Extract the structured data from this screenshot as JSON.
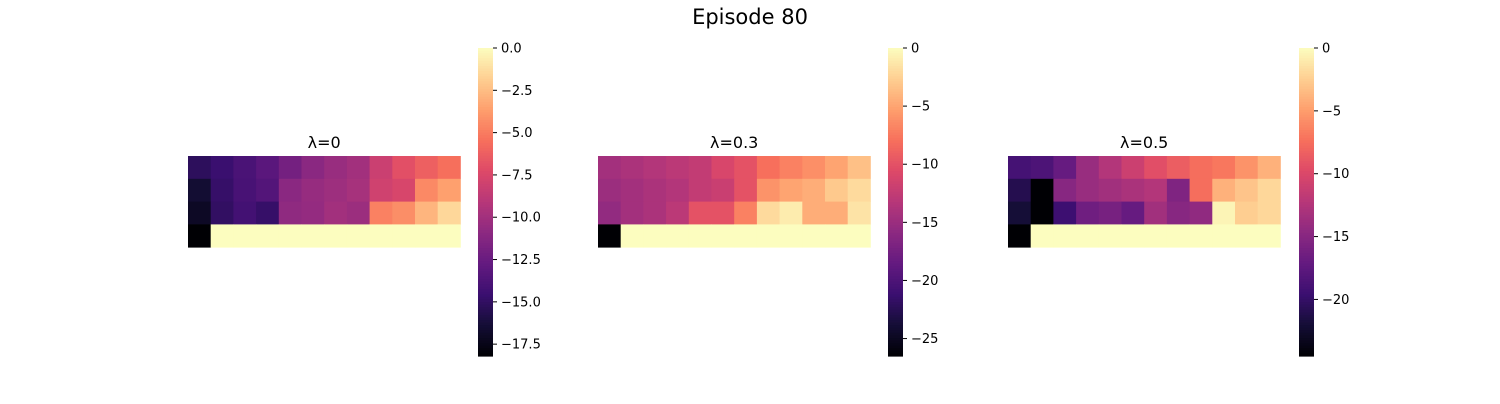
{
  "figure": {
    "title": "Episode 80"
  },
  "colormap": "magma",
  "chart_data": [
    {
      "type": "heatmap",
      "title": "λ=0",
      "rows": 4,
      "cols": 12,
      "values": [
        [
          -15.2,
          -14.6,
          -13.9,
          -13.2,
          -12.0,
          -11.0,
          -10.4,
          -10.0,
          -8.2,
          -7.0,
          -6.2,
          -5.5
        ],
        [
          -16.5,
          -14.8,
          -14.0,
          -13.5,
          -11.0,
          -10.5,
          -10.2,
          -9.8,
          -8.0,
          -7.6,
          -4.5,
          -3.6
        ],
        [
          -17.0,
          -15.0,
          -14.2,
          -14.8,
          -10.8,
          -10.6,
          -10.0,
          -10.3,
          -4.8,
          -4.3,
          -2.8,
          -1.5
        ],
        [
          -18.2,
          0,
          0,
          0,
          0,
          0,
          0,
          0,
          0,
          0,
          0,
          0
        ]
      ],
      "vmin": -18.2,
      "vmax": 0,
      "colorbar_ticks": [
        0,
        -2.5,
        -5,
        -7.5,
        -10,
        -12.5,
        -15,
        -17.5
      ],
      "colorbar_tick_labels": [
        "0.0",
        "−2.5",
        "−5.0",
        "−7.5",
        "−10.0",
        "−12.5",
        "−15.0",
        "−17.5"
      ]
    },
    {
      "type": "heatmap",
      "title": "λ=0.3",
      "rows": 4,
      "cols": 12,
      "values": [
        [
          -14.5,
          -14.0,
          -13.5,
          -13.0,
          -12.5,
          -11.0,
          -10.0,
          -8.0,
          -7.0,
          -6.2,
          -5.0,
          -3.5
        ],
        [
          -15.0,
          -14.5,
          -14.0,
          -13.5,
          -12.5,
          -12.0,
          -10.0,
          -6.0,
          -5.0,
          -4.5,
          -3.0,
          -2.0
        ],
        [
          -15.5,
          -14.5,
          -14.0,
          -13.0,
          -10.0,
          -10.0,
          -7.0,
          -2.0,
          -1.0,
          -4.5,
          -4.5,
          -1.5
        ],
        [
          -26.5,
          0,
          0,
          0,
          0,
          0,
          0,
          0,
          0,
          0,
          0,
          0
        ]
      ],
      "vmin": -26.5,
      "vmax": 0,
      "colorbar_ticks": [
        0,
        -5,
        -10,
        -15,
        -20,
        -25
      ],
      "colorbar_tick_labels": [
        "0",
        "−5",
        "−10",
        "−15",
        "−20",
        "−25"
      ]
    },
    {
      "type": "heatmap",
      "title": "λ=0.5",
      "rows": 4,
      "cols": 12,
      "values": [
        [
          -19.0,
          -18.5,
          -17.0,
          -14.0,
          -12.5,
          -11.0,
          -9.5,
          -8.5,
          -7.5,
          -7.0,
          -5.5,
          -4.0
        ],
        [
          -21.0,
          -25.0,
          -15.0,
          -14.0,
          -13.5,
          -13.0,
          -12.5,
          -15.5,
          -7.5,
          -4.0,
          -3.0,
          -2.0
        ],
        [
          -22.0,
          -25.0,
          -19.5,
          -16.5,
          -16.0,
          -17.0,
          -13.5,
          -15.0,
          -14.5,
          -0.5,
          -2.5,
          -2.0
        ],
        [
          -24.5,
          0,
          0,
          0,
          0,
          0,
          0,
          0,
          0,
          0,
          0,
          0
        ]
      ],
      "vmin": -24.5,
      "vmax": 0,
      "colorbar_ticks": [
        0,
        -5,
        -10,
        -15,
        -20
      ],
      "colorbar_tick_labels": [
        "0",
        "−5",
        "−10",
        "−15",
        "−20"
      ]
    }
  ]
}
